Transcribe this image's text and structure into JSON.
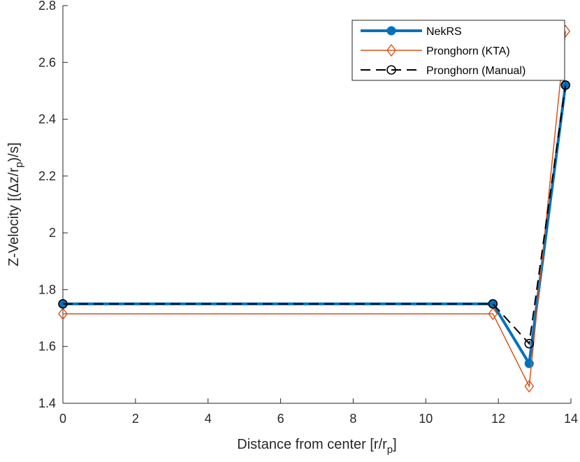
{
  "chart_data": {
    "type": "line",
    "xlabel": "Distance from center [r/r_p]",
    "ylabel": "Z-Velocity [(Δz/r_p)/s]",
    "xlim": [
      0,
      14
    ],
    "ylim": [
      1.4,
      2.8
    ],
    "xticks": [
      "0",
      "2",
      "4",
      "6",
      "8",
      "10",
      "12",
      "14"
    ],
    "yticks": [
      "1.4",
      "1.6",
      "1.8",
      "2",
      "2.2",
      "2.4",
      "2.6",
      "2.8"
    ],
    "grid": false,
    "legend_position": "top-right",
    "series": [
      {
        "name": "NekRS",
        "color": "#0072BD",
        "marker": "circle-filled",
        "linestyle": "solid-thick",
        "x": [
          0,
          11.85,
          12.85,
          13.85
        ],
        "y": [
          1.75,
          1.75,
          1.54,
          2.52
        ]
      },
      {
        "name": "Pronghorn (KTA)",
        "color": "#D95319",
        "marker": "diamond-open",
        "linestyle": "solid-thin",
        "x": [
          0,
          11.85,
          12.85,
          13.85
        ],
        "y": [
          1.715,
          1.715,
          1.46,
          2.71
        ]
      },
      {
        "name": "Pronghorn (Manual)",
        "color": "#000000",
        "marker": "circle-open",
        "linestyle": "dashed",
        "x": [
          0,
          11.85,
          12.85,
          13.85
        ],
        "y": [
          1.75,
          1.75,
          1.61,
          2.52
        ]
      }
    ]
  }
}
